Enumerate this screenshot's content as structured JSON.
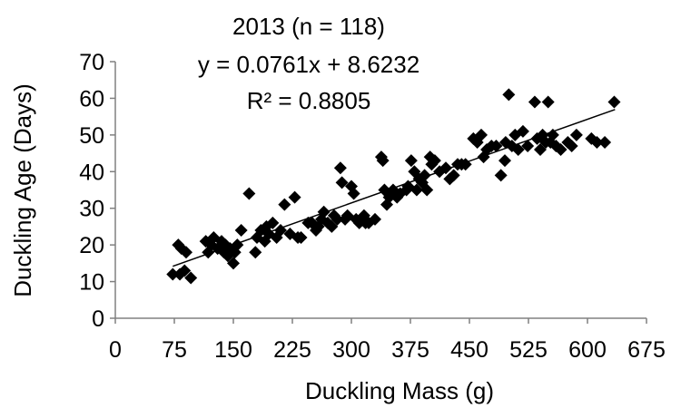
{
  "chart_data": {
    "type": "scatter",
    "title": "2013 (n = 118)",
    "annotations": [
      "y = 0.0761x + 8.6232",
      "R² = 0.8805"
    ],
    "xlabel": "Duckling Mass (g)",
    "ylabel": "Duckling Age (Days)",
    "xlim": [
      0,
      675
    ],
    "ylim": [
      0,
      70
    ],
    "xticks": [
      0,
      75,
      150,
      225,
      300,
      375,
      450,
      525,
      600,
      675
    ],
    "yticks": [
      0,
      10,
      20,
      30,
      40,
      50,
      60,
      70
    ],
    "grid": false,
    "legend": "none",
    "marker": "diamond",
    "marker_color": "#000000",
    "trendline": {
      "slope": 0.0761,
      "intercept": 8.6232,
      "x_range": [
        73,
        635
      ]
    },
    "points": [
      [
        73,
        12
      ],
      [
        80,
        20
      ],
      [
        82,
        12
      ],
      [
        84,
        19
      ],
      [
        88,
        13
      ],
      [
        90,
        18
      ],
      [
        96,
        11
      ],
      [
        115,
        21
      ],
      [
        118,
        18
      ],
      [
        122,
        20
      ],
      [
        125,
        22
      ],
      [
        130,
        19
      ],
      [
        135,
        21
      ],
      [
        138,
        18
      ],
      [
        140,
        20
      ],
      [
        143,
        17
      ],
      [
        146,
        19
      ],
      [
        150,
        15
      ],
      [
        152,
        18
      ],
      [
        155,
        20
      ],
      [
        160,
        24
      ],
      [
        170,
        34
      ],
      [
        178,
        18
      ],
      [
        180,
        22
      ],
      [
        185,
        24
      ],
      [
        190,
        21
      ],
      [
        192,
        25
      ],
      [
        195,
        23
      ],
      [
        200,
        26
      ],
      [
        205,
        22
      ],
      [
        210,
        24
      ],
      [
        215,
        31
      ],
      [
        222,
        23
      ],
      [
        228,
        33
      ],
      [
        232,
        22
      ],
      [
        236,
        22
      ],
      [
        250,
        26
      ],
      [
        255,
        24
      ],
      [
        258,
        25
      ],
      [
        262,
        27
      ],
      [
        265,
        29
      ],
      [
        270,
        26
      ],
      [
        275,
        25
      ],
      [
        278,
        28
      ],
      [
        282,
        27
      ],
      [
        286,
        41
      ],
      [
        288,
        37
      ],
      [
        292,
        27
      ],
      [
        295,
        28
      ],
      [
        300,
        36
      ],
      [
        303,
        34
      ],
      [
        306,
        27
      ],
      [
        310,
        26
      ],
      [
        316,
        28
      ],
      [
        322,
        26
      ],
      [
        330,
        27
      ],
      [
        338,
        44
      ],
      [
        340,
        43
      ],
      [
        342,
        35
      ],
      [
        345,
        31
      ],
      [
        348,
        33
      ],
      [
        353,
        35
      ],
      [
        358,
        33
      ],
      [
        362,
        34
      ],
      [
        370,
        35
      ],
      [
        376,
        43
      ],
      [
        380,
        40
      ],
      [
        383,
        35
      ],
      [
        386,
        38
      ],
      [
        390,
        37
      ],
      [
        393,
        39
      ],
      [
        396,
        35
      ],
      [
        400,
        44
      ],
      [
        402,
        42
      ],
      [
        406,
        43
      ],
      [
        412,
        40
      ],
      [
        420,
        41
      ],
      [
        425,
        38
      ],
      [
        430,
        39
      ],
      [
        435,
        42
      ],
      [
        440,
        42
      ],
      [
        455,
        49
      ],
      [
        460,
        48
      ],
      [
        465,
        50
      ],
      [
        468,
        44
      ],
      [
        472,
        46
      ],
      [
        478,
        47
      ],
      [
        484,
        47
      ],
      [
        490,
        39
      ],
      [
        496,
        48
      ],
      [
        500,
        61
      ],
      [
        504,
        47
      ],
      [
        508,
        50
      ],
      [
        512,
        46
      ],
      [
        518,
        51
      ],
      [
        524,
        47
      ],
      [
        533,
        59
      ],
      [
        536,
        49
      ],
      [
        540,
        46
      ],
      [
        543,
        50
      ],
      [
        547,
        48
      ],
      [
        550,
        59
      ],
      [
        553,
        48
      ],
      [
        556,
        50
      ],
      [
        560,
        47
      ],
      [
        566,
        46
      ],
      [
        575,
        48
      ],
      [
        580,
        47
      ],
      [
        586,
        50
      ],
      [
        605,
        49
      ],
      [
        612,
        48
      ],
      [
        622,
        48
      ],
      [
        634,
        59
      ],
      [
        245,
        26
      ],
      [
        318,
        26
      ],
      [
        372,
        36
      ],
      [
        445,
        42
      ],
      [
        495,
        43
      ]
    ]
  }
}
